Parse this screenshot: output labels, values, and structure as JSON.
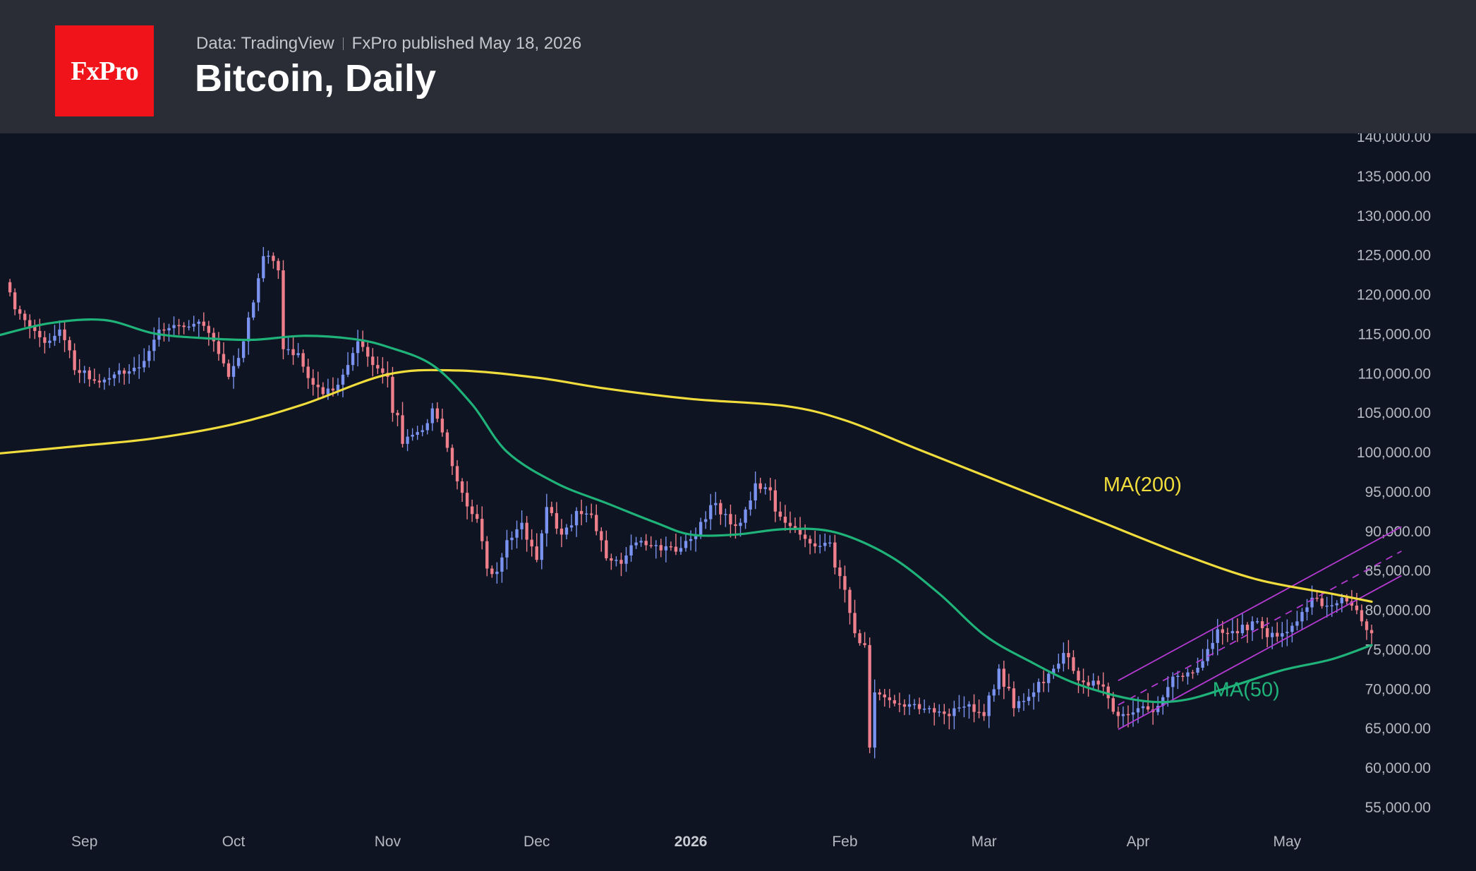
{
  "header": {
    "logo_text": "FxPro",
    "source": "Data: TradingView",
    "published": "FxPro published May 18, 2026",
    "title": "Bitcoin, Daily"
  },
  "colors": {
    "background": "#0e1421",
    "header_bg": "#2a2d36",
    "brand_red": "#f0141a",
    "bull_candle": "#7b93f0",
    "bear_candle": "#f07f8c",
    "ma200": "#f0dc3c",
    "ma50": "#1fb37a",
    "channel": "#b43ad2"
  },
  "chart_data": {
    "type": "candlestick",
    "title": "Bitcoin, Daily",
    "ylim": [
      53000,
      140000
    ],
    "y_ticks": [
      "140,000.00",
      "135,000.00",
      "130,000.00",
      "125,000.00",
      "120,000.00",
      "115,000.00",
      "110,000.00",
      "105,000.00",
      "100,000.00",
      "95,000.00",
      "90,000.00",
      "85,000.00",
      "80,000.00",
      "75,000.00",
      "70,000.00",
      "65,000.00",
      "60,000.00",
      "55,000.00"
    ],
    "x_ticks": [
      {
        "label": "Sep",
        "date": "2025-09-01"
      },
      {
        "label": "Oct",
        "date": "2025-10-01"
      },
      {
        "label": "Nov",
        "date": "2025-11-01"
      },
      {
        "label": "Dec",
        "date": "2025-12-01"
      },
      {
        "label": "2026",
        "date": "2026-01-01",
        "bold": true
      },
      {
        "label": "Feb",
        "date": "2026-02-01"
      },
      {
        "label": "Mar",
        "date": "2026-03-01"
      },
      {
        "label": "Apr",
        "date": "2026-04-01"
      },
      {
        "label": "May",
        "date": "2026-05-01"
      }
    ],
    "x_range": [
      "2025-08-15",
      "2026-06-08"
    ],
    "anchors": [
      [
        "2025-08-16",
        121500
      ],
      [
        "2025-08-19",
        117500
      ],
      [
        "2025-08-24",
        113800
      ],
      [
        "2025-08-27",
        115500
      ],
      [
        "2025-08-31",
        110000
      ],
      [
        "2025-09-04",
        108800
      ],
      [
        "2025-09-07",
        109800
      ],
      [
        "2025-09-12",
        110700
      ],
      [
        "2025-09-16",
        115500
      ],
      [
        "2025-09-20",
        116000
      ],
      [
        "2025-09-24",
        116500
      ],
      [
        "2025-09-27",
        114000
      ],
      [
        "2025-09-30",
        109500
      ],
      [
        "2025-10-03",
        114000
      ],
      [
        "2025-10-06",
        122000
      ],
      [
        "2025-10-07",
        124800
      ],
      [
        "2025-10-10",
        123000
      ],
      [
        "2025-10-11",
        113000
      ],
      [
        "2025-10-14",
        112500
      ],
      [
        "2025-10-17",
        108500
      ],
      [
        "2025-10-19",
        107300
      ],
      [
        "2025-10-22",
        108500
      ],
      [
        "2025-10-24",
        111000
      ],
      [
        "2025-10-26",
        114000
      ],
      [
        "2025-10-29",
        111000
      ],
      [
        "2025-11-01",
        109500
      ],
      [
        "2025-11-04",
        101000
      ],
      [
        "2025-11-07",
        102500
      ],
      [
        "2025-11-10",
        105500
      ],
      [
        "2025-11-13",
        100500
      ],
      [
        "2025-11-16",
        94800
      ],
      [
        "2025-11-19",
        91500
      ],
      [
        "2025-11-21",
        85200
      ],
      [
        "2025-11-23",
        84800
      ],
      [
        "2025-11-25",
        88800
      ],
      [
        "2025-11-28",
        91000
      ],
      [
        "2025-12-01",
        86300
      ],
      [
        "2025-12-03",
        93000
      ],
      [
        "2025-12-06",
        89500
      ],
      [
        "2025-12-09",
        92500
      ],
      [
        "2025-12-12",
        92000
      ],
      [
        "2025-12-15",
        86500
      ],
      [
        "2025-12-18",
        85800
      ],
      [
        "2025-12-21",
        88500
      ],
      [
        "2025-12-26",
        87500
      ],
      [
        "2025-12-30",
        87800
      ],
      [
        "2026-01-02",
        89500
      ],
      [
        "2026-01-06",
        93500
      ],
      [
        "2026-01-09",
        90800
      ],
      [
        "2026-01-11",
        91000
      ],
      [
        "2026-01-14",
        96000
      ],
      [
        "2026-01-16",
        95500
      ],
      [
        "2026-01-20",
        91000
      ],
      [
        "2026-01-23",
        89500
      ],
      [
        "2026-01-26",
        88000
      ],
      [
        "2026-01-29",
        88500
      ],
      [
        "2026-02-01",
        82500
      ],
      [
        "2026-02-03",
        77000
      ],
      [
        "2026-02-05",
        75500
      ],
      [
        "2026-02-06",
        62500
      ],
      [
        "2026-02-07",
        69500
      ],
      [
        "2026-02-10",
        68500
      ],
      [
        "2026-02-14",
        68000
      ],
      [
        "2026-02-18",
        67500
      ],
      [
        "2026-02-22",
        66500
      ],
      [
        "2026-02-26",
        68000
      ],
      [
        "2026-03-01",
        66500
      ],
      [
        "2026-03-04",
        72500
      ],
      [
        "2026-03-07",
        67500
      ],
      [
        "2026-03-11",
        69500
      ],
      [
        "2026-03-15",
        72500
      ],
      [
        "2026-03-17",
        74500
      ],
      [
        "2026-03-20",
        71000
      ],
      [
        "2026-03-24",
        70500
      ],
      [
        "2026-03-28",
        66500
      ],
      [
        "2026-04-01",
        67500
      ],
      [
        "2026-04-04",
        67000
      ],
      [
        "2026-04-08",
        71500
      ],
      [
        "2026-04-12",
        72000
      ],
      [
        "2026-04-15",
        75000
      ],
      [
        "2026-04-17",
        77500
      ],
      [
        "2026-04-21",
        77000
      ],
      [
        "2026-04-24",
        78500
      ],
      [
        "2026-04-27",
        76500
      ],
      [
        "2026-04-30",
        77000
      ],
      [
        "2026-05-03",
        78500
      ],
      [
        "2026-05-06",
        81500
      ],
      [
        "2026-05-09",
        80500
      ],
      [
        "2026-05-12",
        81500
      ],
      [
        "2026-05-14",
        80500
      ],
      [
        "2026-05-16",
        78500
      ],
      [
        "2026-05-18",
        77000
      ]
    ],
    "series": [
      {
        "name": "MA(200)",
        "points": [
          [
            "2025-08-15",
            99800
          ],
          [
            "2025-09-01",
            100800
          ],
          [
            "2025-09-15",
            101700
          ],
          [
            "2025-10-01",
            103500
          ],
          [
            "2025-10-15",
            106000
          ],
          [
            "2025-11-01",
            109800
          ],
          [
            "2025-11-15",
            110300
          ],
          [
            "2025-12-01",
            109400
          ],
          [
            "2025-12-15",
            108000
          ],
          [
            "2026-01-01",
            106700
          ],
          [
            "2026-01-20",
            105800
          ],
          [
            "2026-02-01",
            104000
          ],
          [
            "2026-02-15",
            100500
          ],
          [
            "2026-03-01",
            97000
          ],
          [
            "2026-03-15",
            93500
          ],
          [
            "2026-03-25",
            91000
          ],
          [
            "2026-04-10",
            87000
          ],
          [
            "2026-04-25",
            83800
          ],
          [
            "2026-05-10",
            82000
          ],
          [
            "2026-05-18",
            81000
          ]
        ]
      },
      {
        "name": "MA(50)",
        "points": [
          [
            "2025-08-15",
            114800
          ],
          [
            "2025-08-25",
            116300
          ],
          [
            "2025-09-05",
            116700
          ],
          [
            "2025-09-15",
            115000
          ],
          [
            "2025-09-25",
            114400
          ],
          [
            "2025-10-05",
            114200
          ],
          [
            "2025-10-15",
            114700
          ],
          [
            "2025-10-25",
            114300
          ],
          [
            "2025-11-01",
            113300
          ],
          [
            "2025-11-10",
            111000
          ],
          [
            "2025-11-18",
            106000
          ],
          [
            "2025-11-25",
            100000
          ],
          [
            "2025-12-05",
            96000
          ],
          [
            "2025-12-15",
            93500
          ],
          [
            "2025-12-25",
            91000
          ],
          [
            "2026-01-01",
            89500
          ],
          [
            "2026-01-10",
            89500
          ],
          [
            "2026-01-20",
            90200
          ],
          [
            "2026-01-30",
            89800
          ],
          [
            "2026-02-10",
            86800
          ],
          [
            "2026-02-20",
            82000
          ],
          [
            "2026-03-01",
            76800
          ],
          [
            "2026-03-10",
            73500
          ],
          [
            "2026-03-20",
            70500
          ],
          [
            "2026-04-01",
            68500
          ],
          [
            "2026-04-10",
            68500
          ],
          [
            "2026-04-20",
            70300
          ],
          [
            "2026-04-30",
            72300
          ],
          [
            "2026-05-10",
            73700
          ],
          [
            "2026-05-18",
            75500
          ]
        ]
      }
    ],
    "channel": {
      "upper": [
        [
          "2026-03-28",
          71000
        ],
        [
          "2026-05-24",
          90500
        ]
      ],
      "lower": [
        [
          "2026-03-28",
          64800
        ],
        [
          "2026-05-24",
          84300
        ]
      ],
      "middle": [
        [
          "2026-03-28",
          67900
        ],
        [
          "2026-05-24",
          87400
        ]
      ]
    },
    "annotations": [
      {
        "text": "MA(200)",
        "date": "2026-03-25",
        "value": 95000,
        "series": "MA(200)"
      },
      {
        "text": "MA(50)",
        "date": "2026-04-16",
        "value": 69000,
        "series": "MA(50)"
      }
    ]
  }
}
